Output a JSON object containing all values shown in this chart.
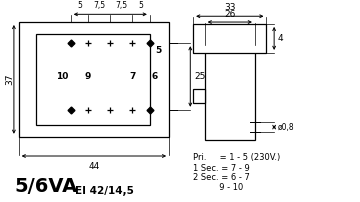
{
  "bg_color": "#ffffff",
  "line_color": "#000000",
  "title_large": "5/6VA",
  "title_small": "EI 42/14,5",
  "pri_text": "Pri.     = 1 - 5 (230V.)",
  "sec1_text": "1 Sec. = 7 - 9",
  "sec2_text": "2 Sec. = 6 - 7",
  "sec3_text": "          9 - 10",
  "dim_44": "44",
  "dim_37": "37",
  "dim_25": "25",
  "dim_5a": "5",
  "dim_75a": "7,5",
  "dim_75b": "7,5",
  "dim_5b": "5",
  "dim_33": "33",
  "dim_26": "26",
  "dim_4": "4",
  "dim_08": "ø0,8",
  "pin_5": "5",
  "pin_10": "10",
  "pin_9": "9",
  "pin_7": "7",
  "pin_6": "6"
}
